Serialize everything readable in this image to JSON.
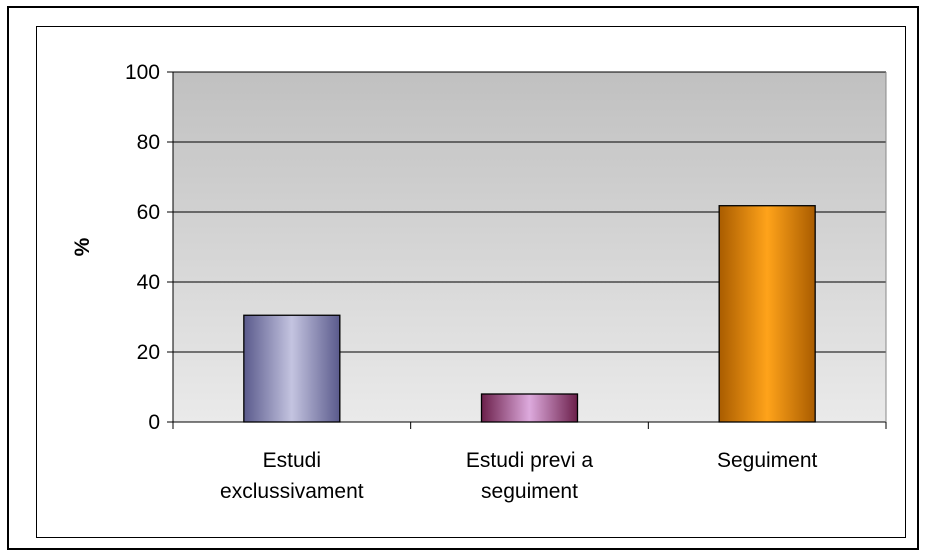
{
  "chart_data": {
    "type": "bar",
    "title": "",
    "xlabel": "",
    "ylabel": "%",
    "ylim": [
      0,
      100
    ],
    "yticks": [
      0,
      20,
      40,
      60,
      80,
      100
    ],
    "grid": true,
    "categories": [
      [
        "Estudi",
        "exclussivament"
      ],
      [
        "Estudi previ a",
        "seguiment"
      ],
      [
        "Seguiment"
      ]
    ],
    "values": [
      30.5,
      8,
      61.8
    ],
    "bar_colors": [
      {
        "base": "#9999cc",
        "dark": "#5a5a8c",
        "light": "#c4c4e0"
      },
      {
        "base": "#993366",
        "dark": "#6b1f4a",
        "light": "#ddaadd"
      },
      {
        "base": "#ff9900",
        "dark": "#a95c00",
        "light": "#ffa31a"
      }
    ],
    "plot_background": {
      "top": "#c0c0c0",
      "bottom": "#eaeaea"
    }
  }
}
